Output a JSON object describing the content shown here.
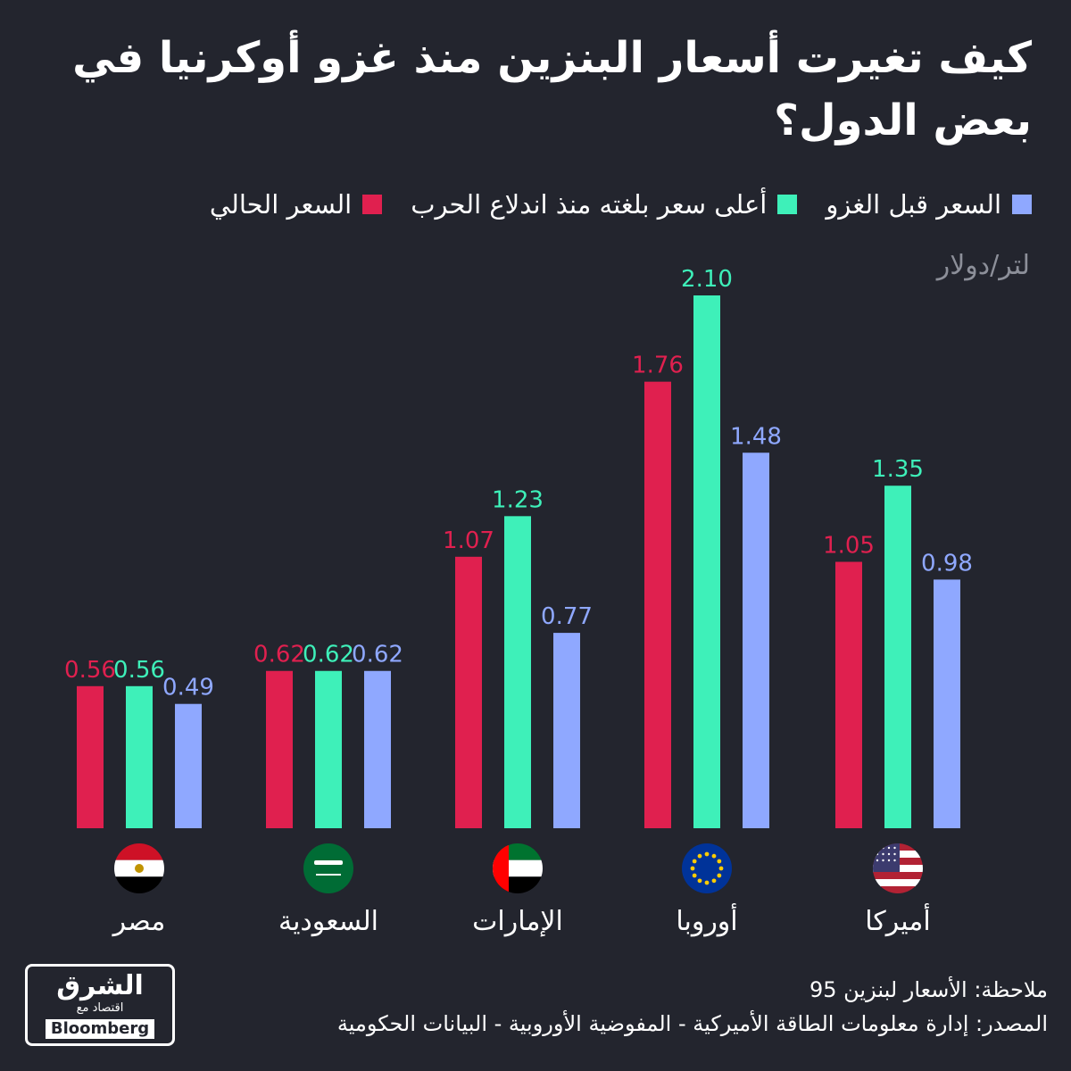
{
  "title": "كيف تغيرت أسعار البنزين منذ غزو أوكرنيا في بعض الدول؟",
  "legend": [
    {
      "label": "السعر قبل الغزو",
      "color": "#8fa8ff"
    },
    {
      "label": "أعلى سعر بلغته منذ اندلاع الحرب",
      "color": "#3ef0b9"
    },
    {
      "label": "السعر الحالي",
      "color": "#e0204f"
    }
  ],
  "unit": "لتر/دولار",
  "chart_data": {
    "type": "bar",
    "categories": [
      "مصر",
      "السعودية",
      "الإمارات",
      "أوروبا",
      "أميركا"
    ],
    "series": [
      {
        "name": "السعر الحالي",
        "color": "#e0204f",
        "values": [
          0.56,
          0.62,
          1.07,
          1.76,
          1.05
        ]
      },
      {
        "name": "أعلى سعر بلغته منذ اندلاع الحرب",
        "color": "#3ef0b9",
        "values": [
          0.56,
          0.62,
          1.23,
          2.1,
          1.35
        ]
      },
      {
        "name": "السعر قبل الغزو",
        "color": "#8fa8ff",
        "values": [
          0.49,
          0.62,
          0.77,
          1.48,
          0.98
        ]
      }
    ],
    "ylabel": "لتر/دولار",
    "ylim": [
      0,
      2.1
    ],
    "grid": false,
    "legend_position": "top"
  },
  "flags": [
    "egypt-flag-icon",
    "saudi-flag-icon",
    "uae-flag-icon",
    "eu-flag-icon",
    "usa-flag-icon"
  ],
  "footer": {
    "note": "ملاحظة: الأسعار لبنزين 95",
    "source": "المصدر: إدارة معلومات الطاقة الأميركية - المفوضية الأوروبية - البيانات الحكومية"
  },
  "logo": {
    "main": "الشرق",
    "sub": "اقتصاد مع",
    "brand": "Bloomberg"
  }
}
